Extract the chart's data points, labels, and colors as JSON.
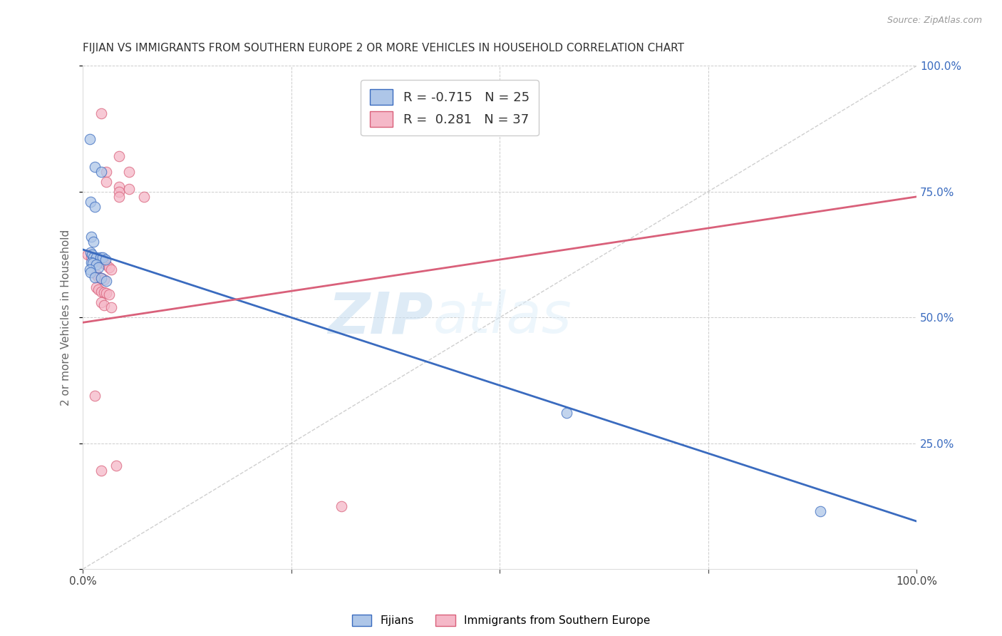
{
  "title": "FIJIAN VS IMMIGRANTS FROM SOUTHERN EUROPE 2 OR MORE VEHICLES IN HOUSEHOLD CORRELATION CHART",
  "source": "Source: ZipAtlas.com",
  "ylabel": "2 or more Vehicles in Household",
  "xlim": [
    0.0,
    1.0
  ],
  "ylim": [
    0.0,
    1.0
  ],
  "legend_label1": "Fijians",
  "legend_label2": "Immigrants from Southern Europe",
  "R1": -0.715,
  "N1": 25,
  "R2": 0.281,
  "N2": 37,
  "color_blue": "#aec6e8",
  "color_pink": "#f5b8c8",
  "line_color_blue": "#3a6bbf",
  "line_color_pink": "#d9607a",
  "diagonal_color": "#bbbbbb",
  "background_color": "#ffffff",
  "watermark_zip": "ZIP",
  "watermark_atlas": "atlas",
  "fijian_points": [
    [
      0.008,
      0.855
    ],
    [
      0.014,
      0.8
    ],
    [
      0.022,
      0.79
    ],
    [
      0.009,
      0.73
    ],
    [
      0.014,
      0.72
    ],
    [
      0.01,
      0.66
    ],
    [
      0.013,
      0.65
    ],
    [
      0.009,
      0.63
    ],
    [
      0.011,
      0.625
    ],
    [
      0.013,
      0.62
    ],
    [
      0.016,
      0.62
    ],
    [
      0.021,
      0.62
    ],
    [
      0.024,
      0.62
    ],
    [
      0.027,
      0.615
    ],
    [
      0.01,
      0.61
    ],
    [
      0.012,
      0.608
    ],
    [
      0.016,
      0.605
    ],
    [
      0.019,
      0.6
    ],
    [
      0.008,
      0.595
    ],
    [
      0.009,
      0.59
    ],
    [
      0.014,
      0.58
    ],
    [
      0.022,
      0.578
    ],
    [
      0.028,
      0.572
    ],
    [
      0.58,
      0.31
    ],
    [
      0.885,
      0.115
    ]
  ],
  "southern_europe_points": [
    [
      0.022,
      0.905
    ],
    [
      0.043,
      0.82
    ],
    [
      0.028,
      0.79
    ],
    [
      0.055,
      0.79
    ],
    [
      0.028,
      0.77
    ],
    [
      0.043,
      0.76
    ],
    [
      0.055,
      0.755
    ],
    [
      0.043,
      0.75
    ],
    [
      0.043,
      0.74
    ],
    [
      0.073,
      0.74
    ],
    [
      0.006,
      0.625
    ],
    [
      0.01,
      0.62
    ],
    [
      0.014,
      0.618
    ],
    [
      0.016,
      0.615
    ],
    [
      0.019,
      0.612
    ],
    [
      0.022,
      0.61
    ],
    [
      0.025,
      0.608
    ],
    [
      0.028,
      0.605
    ],
    [
      0.031,
      0.6
    ],
    [
      0.034,
      0.595
    ],
    [
      0.016,
      0.585
    ],
    [
      0.019,
      0.58
    ],
    [
      0.022,
      0.578
    ],
    [
      0.025,
      0.575
    ],
    [
      0.016,
      0.56
    ],
    [
      0.019,
      0.555
    ],
    [
      0.022,
      0.552
    ],
    [
      0.025,
      0.55
    ],
    [
      0.028,
      0.548
    ],
    [
      0.031,
      0.545
    ],
    [
      0.022,
      0.53
    ],
    [
      0.025,
      0.525
    ],
    [
      0.034,
      0.52
    ],
    [
      0.014,
      0.345
    ],
    [
      0.04,
      0.205
    ],
    [
      0.022,
      0.195
    ],
    [
      0.31,
      0.125
    ]
  ],
  "blue_line": {
    "x0": 0.0,
    "y0": 0.635,
    "x1": 1.0,
    "y1": 0.095
  },
  "pink_line": {
    "x0": 0.0,
    "y0": 0.49,
    "x1": 1.0,
    "y1": 0.74
  }
}
